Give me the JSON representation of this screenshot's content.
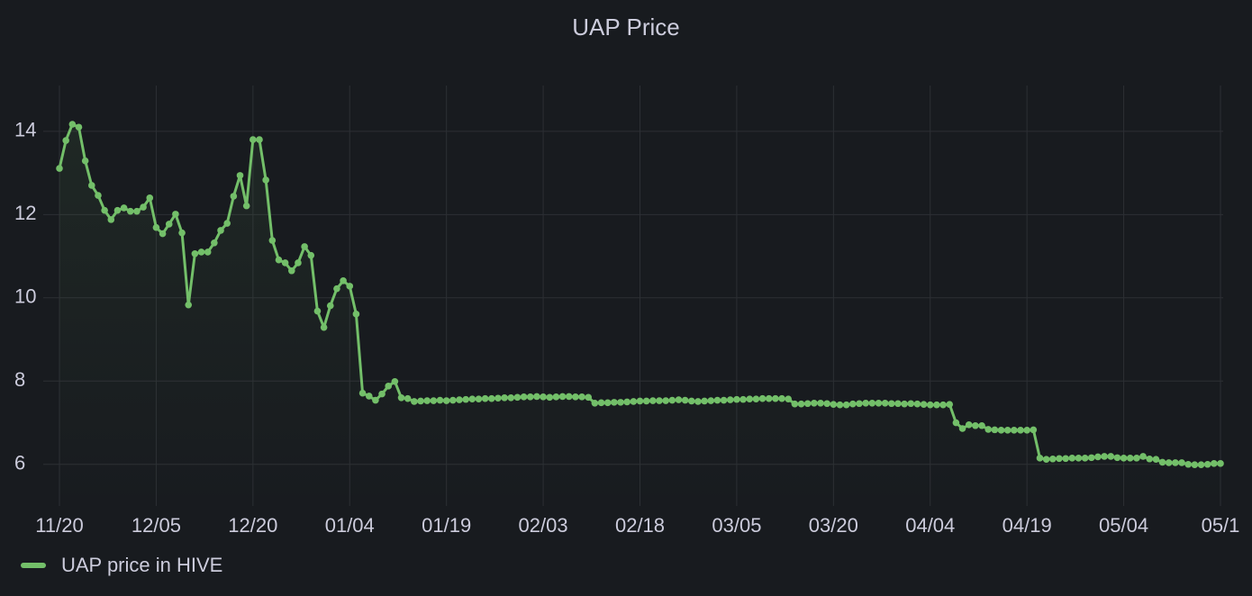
{
  "chart_data": {
    "type": "line",
    "title": "UAP Price",
    "categories": [
      "11/20",
      null,
      null,
      null,
      null,
      null,
      null,
      null,
      null,
      null,
      null,
      null,
      null,
      null,
      null,
      "12/05",
      null,
      null,
      null,
      null,
      null,
      null,
      null,
      null,
      null,
      null,
      null,
      null,
      null,
      null,
      "12/20",
      null,
      null,
      null,
      null,
      null,
      null,
      null,
      null,
      null,
      null,
      null,
      null,
      null,
      null,
      "01/04",
      null,
      null,
      null,
      null,
      null,
      null,
      null,
      null,
      null,
      null,
      null,
      null,
      null,
      null,
      "01/19",
      null,
      null,
      null,
      null,
      null,
      null,
      null,
      null,
      null,
      null,
      null,
      null,
      null,
      null,
      "02/03",
      null,
      null,
      null,
      null,
      null,
      null,
      null,
      null,
      null,
      null,
      null,
      null,
      null,
      null,
      "02/18",
      null,
      null,
      null,
      null,
      null,
      null,
      null,
      null,
      null,
      null,
      null,
      null,
      null,
      null,
      "03/05",
      null,
      null,
      null,
      null,
      null,
      null,
      null,
      null,
      null,
      null,
      null,
      null,
      null,
      null,
      "03/20",
      null,
      null,
      null,
      null,
      null,
      null,
      null,
      null,
      null,
      null,
      null,
      null,
      null,
      null,
      "04/04",
      null,
      null,
      null,
      null,
      null,
      null,
      null,
      null,
      null,
      null,
      null,
      null,
      null,
      null,
      "04/19",
      null,
      null,
      null,
      null,
      null,
      null,
      null,
      null,
      null,
      null,
      null,
      null,
      null,
      null,
      "05/04",
      null,
      null,
      null,
      null,
      null,
      null,
      null,
      null,
      null,
      null,
      null,
      null,
      null,
      null,
      "05/1"
    ],
    "series": [
      {
        "name": "UAP price in HIVE",
        "color": "#73bf69",
        "values": [
          13.11,
          13.78,
          14.17,
          14.1,
          13.29,
          12.7,
          12.46,
          12.1,
          11.88,
          12.1,
          12.16,
          12.08,
          12.08,
          12.18,
          12.4,
          11.69,
          11.54,
          11.77,
          12.01,
          11.56,
          9.83,
          11.06,
          11.1,
          11.1,
          11.32,
          11.62,
          11.79,
          12.44,
          12.94,
          12.21,
          13.8,
          13.8,
          12.83,
          11.38,
          10.91,
          10.84,
          10.65,
          10.84,
          11.23,
          11.02,
          9.68,
          9.29,
          9.81,
          10.22,
          10.41,
          10.28,
          9.61,
          7.71,
          7.64,
          7.54,
          7.69,
          7.88,
          7.99,
          7.6,
          7.58,
          7.51,
          7.52,
          7.53,
          7.53,
          7.54,
          7.53,
          7.54,
          7.55,
          7.56,
          7.57,
          7.57,
          7.58,
          7.58,
          7.59,
          7.6,
          7.6,
          7.61,
          7.62,
          7.62,
          7.63,
          7.62,
          7.61,
          7.62,
          7.63,
          7.63,
          7.62,
          7.62,
          7.61,
          7.47,
          7.48,
          7.48,
          7.49,
          7.49,
          7.5,
          7.51,
          7.52,
          7.52,
          7.53,
          7.53,
          7.53,
          7.54,
          7.55,
          7.54,
          7.52,
          7.51,
          7.52,
          7.53,
          7.54,
          7.54,
          7.55,
          7.56,
          7.56,
          7.57,
          7.57,
          7.58,
          7.58,
          7.58,
          7.58,
          7.57,
          7.45,
          7.45,
          7.46,
          7.47,
          7.47,
          7.46,
          7.44,
          7.43,
          7.43,
          7.45,
          7.46,
          7.47,
          7.47,
          7.47,
          7.47,
          7.46,
          7.46,
          7.45,
          7.46,
          7.45,
          7.44,
          7.43,
          7.43,
          7.43,
          7.44,
          7.0,
          6.86,
          6.95,
          6.93,
          6.93,
          6.84,
          6.83,
          6.82,
          6.82,
          6.82,
          6.82,
          6.82,
          6.83,
          6.15,
          6.12,
          6.13,
          6.14,
          6.14,
          6.15,
          6.15,
          6.15,
          6.16,
          6.18,
          6.19,
          6.19,
          6.16,
          6.15,
          6.15,
          6.15,
          6.19,
          6.13,
          6.12,
          6.05,
          6.04,
          6.04,
          6.04,
          6.0,
          5.99,
          5.99,
          6.0,
          6.02,
          6.02
        ]
      }
    ],
    "ylim": [
      5,
      15.1
    ],
    "yticks": [
      6,
      8,
      10,
      12,
      14
    ],
    "grid": true,
    "legend": "bottom-left"
  }
}
